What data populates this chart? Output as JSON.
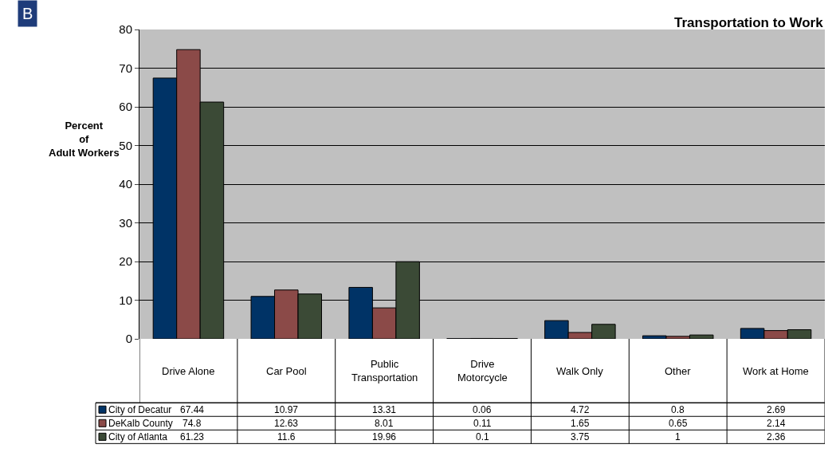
{
  "chart_data": {
    "type": "bar",
    "title": "Transportation to Work",
    "ylabel": "Percent\nof\nAdult Workers",
    "annotations": [
      "B"
    ],
    "categories": [
      "Drive Alone",
      "Car Pool",
      "Public Transportation",
      "Drive Motorcycle",
      "Walk Only",
      "Other",
      "Work at Home"
    ],
    "series": [
      {
        "name": "City of Decatur",
        "color": "#003366",
        "values": [
          67.44,
          10.97,
          13.31,
          0.06,
          4.72,
          0.8,
          2.69
        ]
      },
      {
        "name": "DeKalb County",
        "color": "#8b4a48",
        "values": [
          74.8,
          12.63,
          8.01,
          0.11,
          1.65,
          0.65,
          2.14
        ]
      },
      {
        "name": "City of Atlanta",
        "color": "#3b4a36",
        "values": [
          61.23,
          11.6,
          19.96,
          0.1,
          3.75,
          1,
          2.36
        ]
      }
    ],
    "ylim": [
      0,
      80
    ],
    "yticks": [
      0,
      10,
      20,
      30,
      40,
      50,
      60,
      70,
      80
    ],
    "grid": "y",
    "legend": "bottom left",
    "data_labels": true
  }
}
